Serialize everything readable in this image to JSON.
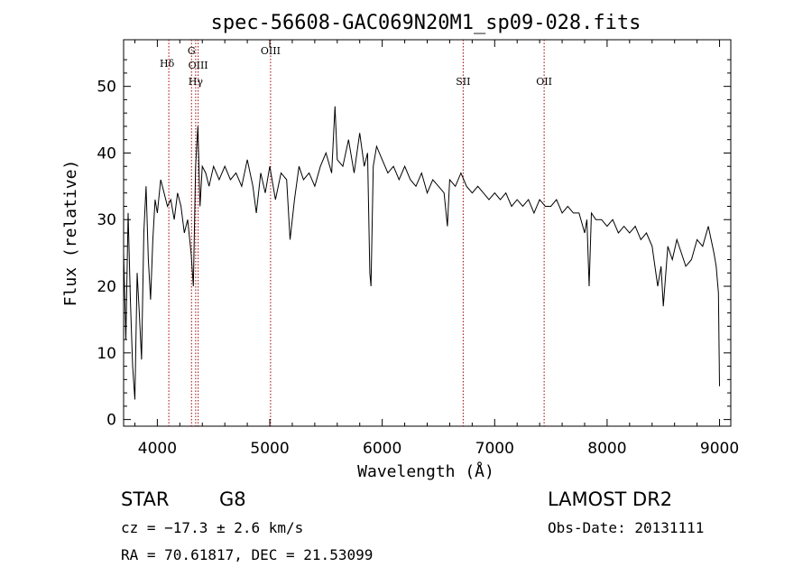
{
  "chart_data": {
    "type": "line",
    "title": "spec-56608-GAC069N20M1_sp09-028.fits",
    "xlabel": "Wavelength (Å)",
    "ylabel": "Flux (relative)",
    "xlim": [
      3700,
      9100
    ],
    "ylim": [
      -1,
      57
    ],
    "xticks": [
      4000,
      5000,
      6000,
      7000,
      8000,
      9000
    ],
    "yticks": [
      0,
      10,
      20,
      30,
      40,
      50
    ],
    "grid": false,
    "series": [
      {
        "x": [
          3700,
          3720,
          3740,
          3760,
          3780,
          3800,
          3820,
          3840,
          3860,
          3880,
          3900,
          3920,
          3940,
          3960,
          3980,
          4000,
          4030,
          4060,
          4090,
          4120,
          4150,
          4180,
          4210,
          4240,
          4270,
          4300,
          4320,
          4340,
          4360,
          4380,
          4400,
          4430,
          4460,
          4500,
          4550,
          4600,
          4650,
          4700,
          4750,
          4800,
          4850,
          4880,
          4920,
          4960,
          5000,
          5050,
          5100,
          5150,
          5180,
          5220,
          5260,
          5300,
          5350,
          5400,
          5450,
          5500,
          5550,
          5580,
          5600,
          5650,
          5700,
          5750,
          5800,
          5840,
          5870,
          5890,
          5900,
          5920,
          5950,
          6000,
          6050,
          6100,
          6150,
          6200,
          6250,
          6300,
          6350,
          6400,
          6450,
          6500,
          6550,
          6580,
          6600,
          6650,
          6700,
          6750,
          6800,
          6850,
          6900,
          6950,
          7000,
          7050,
          7100,
          7150,
          7200,
          7250,
          7300,
          7350,
          7400,
          7450,
          7500,
          7550,
          7600,
          7650,
          7700,
          7750,
          7800,
          7820,
          7840,
          7860,
          7900,
          7950,
          8000,
          8050,
          8100,
          8150,
          8200,
          8250,
          8300,
          8350,
          8400,
          8450,
          8480,
          8500,
          8540,
          8580,
          8620,
          8660,
          8700,
          8750,
          8800,
          8850,
          8900,
          8950,
          8970,
          8990,
          9000
        ],
        "y": [
          25,
          12,
          31,
          18,
          8,
          3,
          22,
          16,
          9,
          28,
          35,
          24,
          18,
          27,
          33,
          31,
          36,
          34,
          32,
          33,
          30,
          34,
          32,
          28,
          30,
          25,
          20,
          38,
          44,
          32,
          38,
          37,
          35,
          38,
          36,
          38,
          36,
          37,
          35,
          39,
          35,
          31,
          37,
          34,
          38,
          33,
          37,
          36,
          27,
          33,
          38,
          36,
          37,
          35,
          38,
          40,
          37,
          47,
          39,
          38,
          42,
          37,
          43,
          38,
          40,
          22,
          20,
          38,
          41,
          39,
          37,
          38,
          36,
          38,
          36,
          35,
          37,
          34,
          36,
          35,
          34,
          29,
          36,
          35,
          37,
          35,
          34,
          35,
          34,
          33,
          34,
          33,
          34,
          32,
          33,
          32,
          33,
          31,
          33,
          32,
          32,
          33,
          31,
          32,
          31,
          31,
          28,
          30,
          20,
          31,
          30,
          30,
          29,
          30,
          28,
          29,
          28,
          29,
          27,
          28,
          26,
          20,
          23,
          17,
          26,
          24,
          27,
          25,
          23,
          24,
          27,
          26,
          29,
          25,
          23,
          19,
          5
        ]
      }
    ],
    "annotations": [
      {
        "label": "Hδ",
        "x": 4102
      },
      {
        "label": "G",
        "x": 4304
      },
      {
        "label": "OIII",
        "x": 4363
      },
      {
        "label": "Hγ",
        "x": 4341
      },
      {
        "label": "OIII",
        "x": 5007
      },
      {
        "label": "SII",
        "x": 6720
      },
      {
        "label": "OII",
        "x": 7440
      }
    ]
  },
  "footer": {
    "object_type": "STAR",
    "subclass": "G8",
    "survey": "LAMOST DR2",
    "redshift": "cz = −17.3 ± 2.6 km/s",
    "obs_date": "Obs-Date: 20131111",
    "coords": "RA =  70.61817, DEC =  21.53099"
  }
}
